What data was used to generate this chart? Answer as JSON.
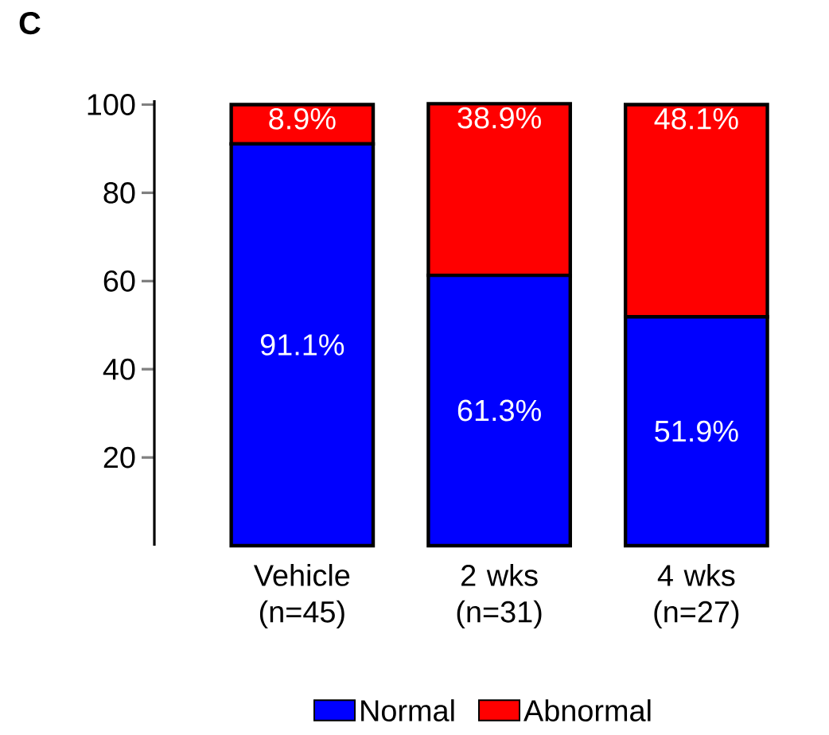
{
  "chart_data": {
    "type": "bar",
    "title": "C",
    "categories": [
      "Vehicle (n=45)",
      "2 wks (n=31)",
      "4 wks (n=27)"
    ],
    "series": [
      {
        "name": "Normal",
        "color": "#0000ff",
        "values": [
          91.1,
          61.3,
          51.9
        ],
        "value_labels": [
          "91.1%",
          "61.3%",
          "51.9%"
        ]
      },
      {
        "name": "Abnormal",
        "color": "#ff0000",
        "values": [
          8.9,
          38.9,
          48.1
        ],
        "value_labels": [
          "8.9%",
          "38.9%",
          "48.1%"
        ]
      }
    ],
    "stacked": true,
    "ylim": [
      0,
      101
    ],
    "yticks": [
      20,
      40,
      60,
      80,
      100
    ],
    "legend": "bottom"
  }
}
